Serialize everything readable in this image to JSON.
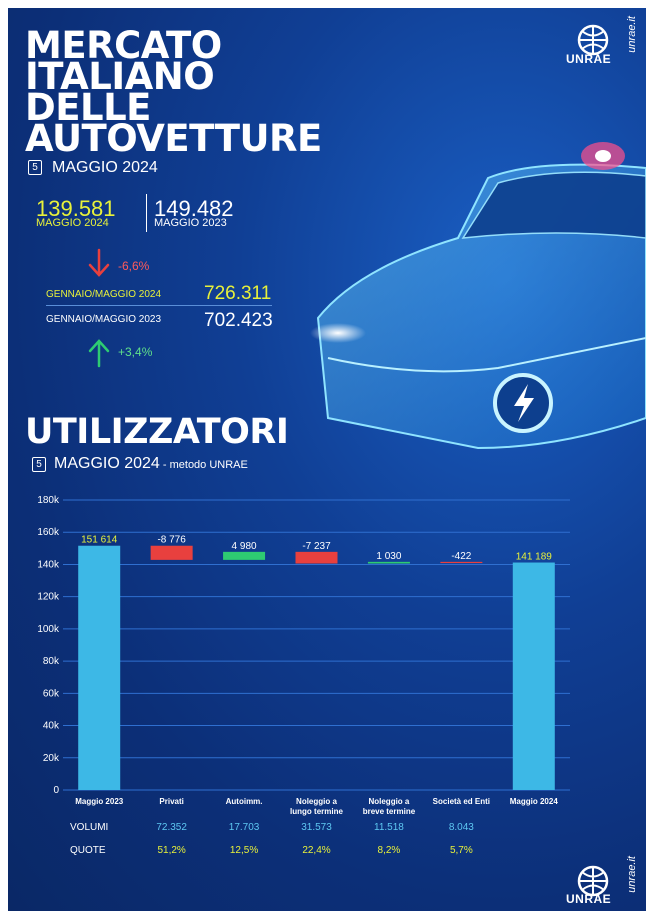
{
  "header": {
    "title_lines": [
      "MERCATO",
      "ITALIANO",
      "DELLE",
      "AUTOVETTURE"
    ],
    "calendar_day": "5",
    "month": "MAGGIO 2024",
    "brand": "UNRAE",
    "site": "unrae.it"
  },
  "monthly": {
    "current_value": "139.581",
    "current_label": "MAGGIO 2024",
    "previous_value": "149.482",
    "previous_label": "MAGGIO 2023",
    "change": "-6,6%"
  },
  "ytd": {
    "current_label": "GENNAIO/MAGGIO 2024",
    "current_value": "726.311",
    "previous_label": "GENNAIO/MAGGIO 2023",
    "previous_value": "702.423",
    "change": "+3,4%"
  },
  "section": {
    "title": "UTILIZZATORI",
    "month": "MAGGIO 2024",
    "method": " - metodo UNRAE"
  },
  "colors": {
    "bar_total": "#3db8e6",
    "bar_neg": "#e8403e",
    "bar_pos": "#2ecb72",
    "label_yellow": "#e8f13a"
  },
  "chart_data": {
    "type": "bar",
    "subtype": "waterfall",
    "categories": [
      "Maggio 2023",
      "Privati",
      "Autoimm.",
      "Noleggio a lungo termine",
      "Noleggio a breve termine",
      "Società ed Enti",
      "Maggio 2024"
    ],
    "values": [
      151614,
      -8776,
      4980,
      -7237,
      1030,
      -422,
      141189
    ],
    "data_labels": [
      "151 614",
      "-8 776",
      "4 980",
      "-7 237",
      "1 030",
      "-422",
      "141 189"
    ],
    "y_ticks": [
      "0",
      "20k",
      "40k",
      "60k",
      "80k",
      "100k",
      "120k",
      "140k",
      "160k",
      "180k"
    ],
    "ylim": [
      0,
      180000
    ],
    "grid": true
  },
  "table": {
    "volumi_label": "VOLUMI",
    "quote_label": "QUOTE",
    "volumi": [
      "72.352",
      "17.703",
      "31.573",
      "11.518",
      "8.043"
    ],
    "quote": [
      "51,2%",
      "12,5%",
      "22,4%",
      "8,2%",
      "5,7%"
    ]
  }
}
